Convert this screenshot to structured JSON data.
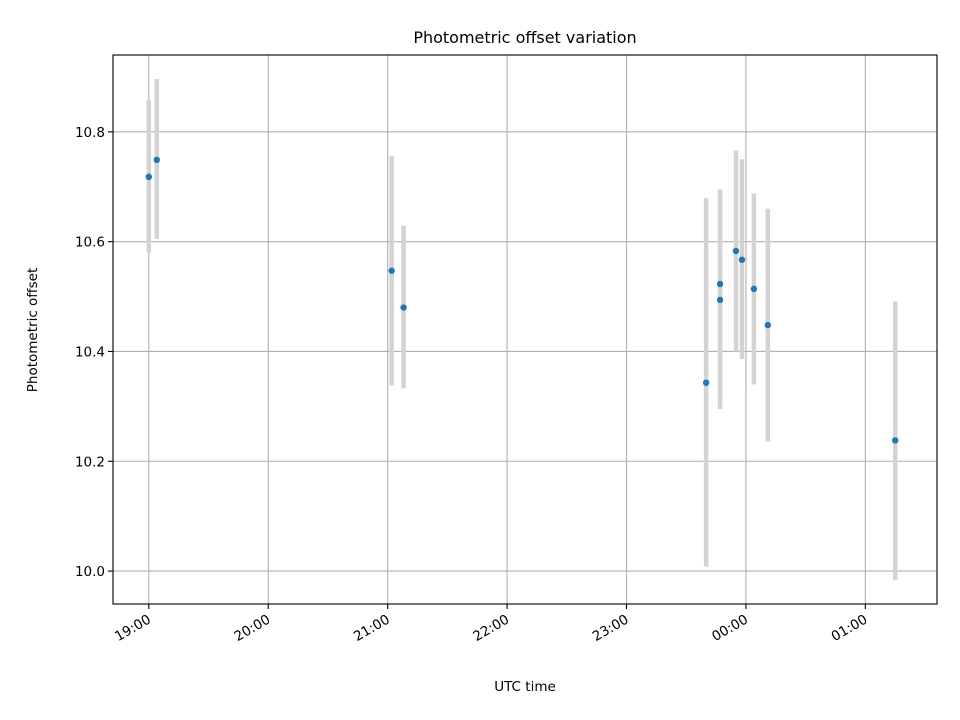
{
  "chart_data": {
    "type": "scatter",
    "title": "Photometric offset variation",
    "xlabel": "UTC time",
    "ylabel": "Photometric offset",
    "x_tick_labels": [
      "19:00",
      "20:00",
      "21:00",
      "22:00",
      "23:00",
      "00:00",
      "01:00"
    ],
    "y_tick_labels": [
      "10.0",
      "10.2",
      "10.4",
      "10.6",
      "10.8"
    ],
    "y_ticks": [
      10.0,
      10.2,
      10.4,
      10.6,
      10.8
    ],
    "xlim": [
      "18:42",
      "01:36"
    ],
    "ylim": [
      9.94,
      10.94
    ],
    "grid": true,
    "points": [
      {
        "x": "19:00",
        "y": 10.718,
        "err_low": 10.58,
        "err_high": 10.858
      },
      {
        "x": "19:04",
        "y": 10.749,
        "err_low": 10.605,
        "err_high": 10.896
      },
      {
        "x": "21:02",
        "y": 10.547,
        "err_low": 10.338,
        "err_high": 10.756
      },
      {
        "x": "21:08",
        "y": 10.48,
        "err_low": 10.333,
        "err_high": 10.629
      },
      {
        "x": "23:40",
        "y": 10.343,
        "err_low": 10.008,
        "err_high": 10.679
      },
      {
        "x": "23:47",
        "y": 10.523,
        "err_low": 10.31,
        "err_high": 10.69
      },
      {
        "x": "23:47",
        "y": 10.494,
        "err_low": 10.295,
        "err_high": 10.695
      },
      {
        "x": "23:55",
        "y": 10.583,
        "err_low": 10.4,
        "err_high": 10.766
      },
      {
        "x": "23:58",
        "y": 10.567,
        "err_low": 10.386,
        "err_high": 10.75
      },
      {
        "x": "00:04",
        "y": 10.514,
        "err_low": 10.34,
        "err_high": 10.688
      },
      {
        "x": "00:11",
        "y": 10.448,
        "err_low": 10.236,
        "err_high": 10.66
      },
      {
        "x": "01:15",
        "y": 10.238,
        "err_low": 9.984,
        "err_high": 10.491
      }
    ],
    "colors": {
      "points": "#1f77b4",
      "error_bars": "#d3d3d3",
      "grid": "#b0b0b0"
    }
  }
}
